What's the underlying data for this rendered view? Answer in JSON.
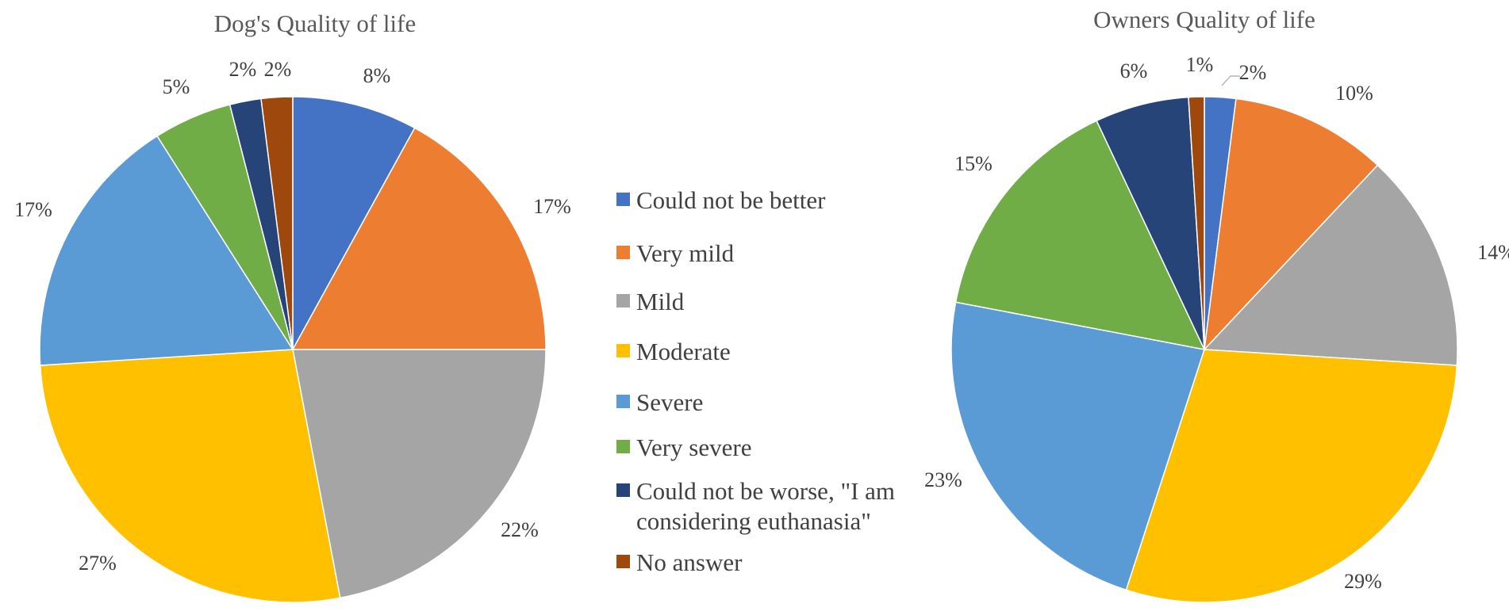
{
  "legend": {
    "items": [
      {
        "label": "Could not be better",
        "color": "#4472C4"
      },
      {
        "label": "Very mild",
        "color": "#ED7D31"
      },
      {
        "label": "Mild",
        "color": "#A5A5A5"
      },
      {
        "label": "Moderate",
        "color": "#FFC000"
      },
      {
        "label": "Severe",
        "color": "#5B9BD5"
      },
      {
        "label": "Very severe",
        "color": "#70AD47"
      },
      {
        "label": "Could not be worse, \"I am considering euthanasia\"",
        "lines": [
          "Could not be worse, \"I am",
          "considering euthanasia\""
        ],
        "color": "#264478"
      },
      {
        "label": "No answer",
        "color": "#9E480E"
      }
    ]
  },
  "chart_data": [
    {
      "type": "pie",
      "title": "Dog's Quality of life",
      "categories": [
        "Could not be better",
        "Very mild",
        "Mild",
        "Moderate",
        "Severe",
        "Very severe",
        "Could not be worse, \"I am considering euthanasia\"",
        "No answer"
      ],
      "values": [
        8,
        17,
        22,
        27,
        17,
        5,
        2,
        2
      ],
      "labels": [
        "8%",
        "17%",
        "22%",
        "27%",
        "17%",
        "5%",
        "2%",
        "2%"
      ],
      "colors": [
        "#4472C4",
        "#ED7D31",
        "#A5A5A5",
        "#FFC000",
        "#5B9BD5",
        "#70AD47",
        "#264478",
        "#9E480E"
      ],
      "start_angle": "12 o'clock",
      "direction": "clockwise"
    },
    {
      "type": "pie",
      "title": "Owners Quality of life",
      "categories": [
        "Could not be better",
        "Very mild",
        "Mild",
        "Moderate",
        "Severe",
        "Very severe",
        "Could not be worse, \"I am considering euthanasia\"",
        "No answer"
      ],
      "values": [
        2,
        10,
        14,
        29,
        23,
        15,
        6,
        1
      ],
      "labels": [
        "2%",
        "10%",
        "14%",
        "29%",
        "23%",
        "15%",
        "6%",
        "1%"
      ],
      "colors": [
        "#4472C4",
        "#ED7D31",
        "#A5A5A5",
        "#FFC000",
        "#5B9BD5",
        "#70AD47",
        "#264478",
        "#9E480E"
      ],
      "start_angle": "12 o'clock",
      "direction": "clockwise"
    }
  ]
}
